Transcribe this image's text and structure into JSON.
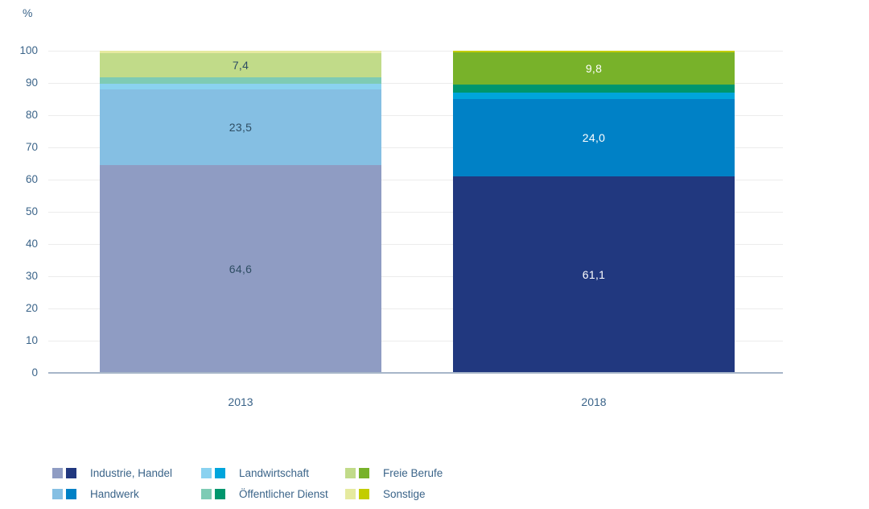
{
  "chart_data": {
    "type": "bar",
    "stacked": true,
    "title": "",
    "unit_label": "%",
    "categories": [
      "2013",
      "2018"
    ],
    "series": [
      {
        "name": "Industrie, Handel",
        "values": [
          64.6,
          61.1
        ],
        "value_labels": [
          "64,6",
          "61,1"
        ],
        "colors": [
          "#8f9cc3",
          "#21387f"
        ],
        "label_colors": [
          "#2e4d63",
          "#ffffff"
        ]
      },
      {
        "name": "Handwerk",
        "values": [
          23.5,
          24.0
        ],
        "value_labels": [
          "23,5",
          "24,0"
        ],
        "colors": [
          "#85bfe3",
          "#0081c6"
        ],
        "label_colors": [
          "#2e4d63",
          "#ffffff"
        ]
      },
      {
        "name": "Landwirtschaft",
        "values": [
          1.6,
          2.0
        ],
        "value_labels": null,
        "colors": [
          "#8ad2f0",
          "#00a5dc"
        ],
        "label_colors": null
      },
      {
        "name": "Öffentlicher Dienst",
        "values": [
          2.1,
          2.5
        ],
        "value_labels": null,
        "colors": [
          "#7ecbb4",
          "#00966d"
        ],
        "label_colors": null
      },
      {
        "name": "Freie Berufe",
        "values": [
          7.4,
          9.8
        ],
        "value_labels": [
          "7,4",
          "9,8"
        ],
        "colors": [
          "#c1db89",
          "#78b22a"
        ],
        "label_colors": [
          "#2e4d63",
          "#ffffff"
        ]
      },
      {
        "name": "Sonstige",
        "values": [
          0.8,
          0.6
        ],
        "value_labels": null,
        "colors": [
          "#e6ea9f",
          "#c3cd00"
        ],
        "label_colors": null
      }
    ],
    "ylim": [
      0,
      100
    ],
    "yticks": [
      0,
      10,
      20,
      30,
      40,
      50,
      60,
      70,
      80,
      90,
      100
    ],
    "grid": true,
    "legend_position": "bottom"
  },
  "axis": {
    "grid_color": "#ececec",
    "baseline_color": "#a7b6c9",
    "text_color": "#3b6489"
  },
  "legend": {
    "column_order": [
      [
        0,
        1
      ],
      [
        2,
        3
      ],
      [
        4,
        5
      ]
    ],
    "swatch_years": [
      "2013",
      "2018"
    ]
  }
}
